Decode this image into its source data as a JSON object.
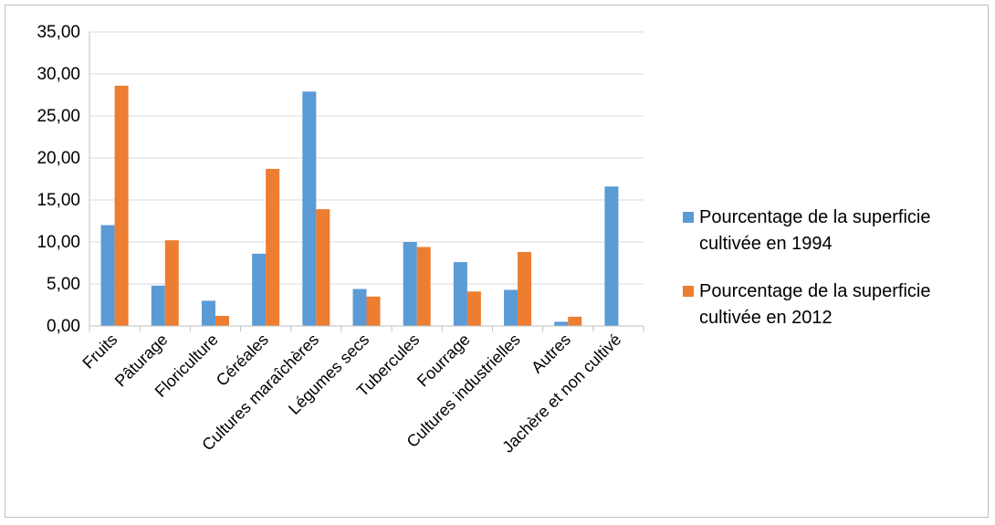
{
  "chart_data": {
    "type": "bar",
    "categories": [
      "Fruits",
      "Pâturage",
      "Floriculture",
      "Céréales",
      "Cultures maraîchères",
      "Légumes secs",
      "Tubercules",
      "Fourrage",
      "Cultures industrielles",
      "Autres",
      "Jachère et non cultivé"
    ],
    "series": [
      {
        "name": "Pourcentage de la superficie cultivée en 1994",
        "color": "#5B9BD5",
        "values": [
          12.0,
          4.8,
          3.0,
          8.6,
          27.9,
          4.4,
          10.0,
          7.6,
          4.3,
          0.5,
          16.6
        ]
      },
      {
        "name": "Pourcentage de la superficie cultivée en 2012",
        "color": "#ED7D31",
        "values": [
          28.6,
          10.2,
          1.2,
          18.7,
          13.9,
          3.5,
          9.4,
          4.1,
          8.8,
          1.1,
          0
        ]
      }
    ],
    "legend_lines": [
      [
        "Pourcentage de la superficie",
        "cultivée en 1994"
      ],
      [
        "Pourcentage de la superficie",
        "cultivée en 2012"
      ]
    ],
    "ylim": [
      0,
      35
    ],
    "yticks": [
      "0,00",
      "5,00",
      "10,00",
      "15,00",
      "20,00",
      "25,00",
      "30,00",
      "35,00"
    ],
    "grid": true,
    "legend_position": "right",
    "title": "",
    "xlabel": "",
    "ylabel": ""
  }
}
